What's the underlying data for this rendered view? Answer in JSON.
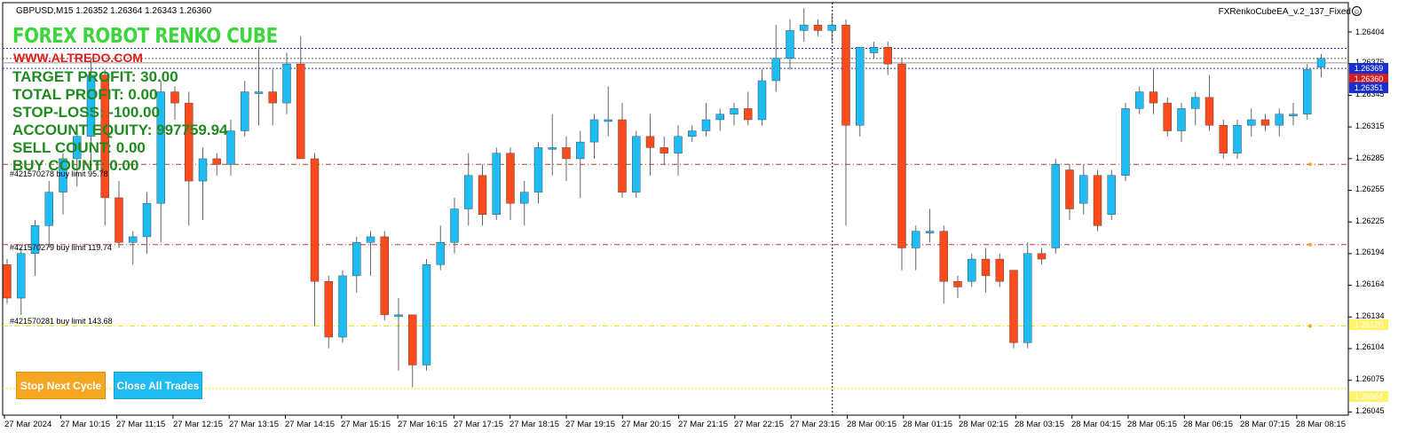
{
  "header": {
    "symbol_line": "GBPUSD,M15  1.26352 1.26364 1.26343 1.26360",
    "ea_name": "FXRenkoCubeEA_v.2_137_Fixed",
    "smiley_icon": "smiley-face-icon"
  },
  "panel": {
    "title": "FOREX ROBOT RENKO CUBE",
    "website": "WWW.ALTREDO.COM",
    "stats": [
      "TARGET PROFIT: 30.00",
      "TOTAL PROFIT: 0.00",
      "STOP-LOSS: -100.00",
      "ACCOUNT EQUITY: 997759.94",
      "SELL COUNT: 0.00",
      "BUY COUNT: 0.00"
    ]
  },
  "buttons": {
    "stop": "Stop Next Cycle",
    "close": "Close All Trades"
  },
  "orders": [
    {
      "label": "#421570278 buy limit 95.78",
      "price": 1.26265,
      "color": "#c0392b"
    },
    {
      "label": "#421570279 buy limit 119.74",
      "price": 1.26193,
      "color": "#c0392b"
    },
    {
      "label": "#421570281 buy limit 143.68",
      "price": 1.2612,
      "color": "#f2e600"
    }
  ],
  "price_axis": {
    "ticks": [
      "1.26404",
      "1.26375",
      "1.26345",
      "1.26315",
      "1.26285",
      "1.26255",
      "1.26225",
      "1.26194",
      "1.26164",
      "1.26134",
      "1.26104",
      "1.26075",
      "1.26045"
    ],
    "labels": [
      {
        "text": "1.26369",
        "bg": "#1a2fcf",
        "fg": "#ffffff"
      },
      {
        "text": "1.26360",
        "bg": "#d62020",
        "fg": "#ffffff"
      },
      {
        "text": "1.26351",
        "bg": "#1a2fcf",
        "fg": "#ffffff"
      },
      {
        "text": "1.26120",
        "bg": "#fff36a",
        "fg": "#ffffff"
      },
      {
        "text": "1.26064",
        "bg": "#fff36a",
        "fg": "#ffffff"
      }
    ]
  },
  "time_axis": [
    "27 Mar 2024",
    "27 Mar 10:15",
    "27 Mar 11:15",
    "27 Mar 12:15",
    "27 Mar 13:15",
    "27 Mar 14:15",
    "27 Mar 15:15",
    "27 Mar 16:15",
    "27 Mar 17:15",
    "27 Mar 18:15",
    "27 Mar 19:15",
    "27 Mar 20:15",
    "27 Mar 21:15",
    "27 Mar 22:15",
    "27 Mar 23:15",
    "28 Mar 00:15",
    "28 Mar 01:15",
    "28 Mar 02:15",
    "28 Mar 03:15",
    "28 Mar 04:15",
    "28 Mar 05:15",
    "28 Mar 06:15",
    "28 Mar 07:15",
    "28 Mar 08:15"
  ],
  "colors": {
    "bull": "#1ebcf2",
    "bear": "#ff4a1c",
    "wick": "#666666",
    "crosshair": "#000000"
  },
  "chart_data": {
    "type": "candlestick",
    "symbol": "GBPUSD",
    "timeframe": "M15",
    "ylim": [
      1.2604,
      1.2641
    ],
    "candles": [
      [
        1.26175,
        1.2618,
        1.2614,
        1.26145
      ],
      [
        1.26145,
        1.2619,
        1.2613,
        1.26185
      ],
      [
        1.26185,
        1.26215,
        1.26165,
        1.2621
      ],
      [
        1.2621,
        1.2625,
        1.2619,
        1.2624
      ],
      [
        1.2624,
        1.26275,
        1.2622,
        1.2627
      ],
      [
        1.2627,
        1.263,
        1.26245,
        1.2629
      ],
      [
        1.2629,
        1.2636,
        1.2626,
        1.26345
      ],
      [
        1.26345,
        1.2635,
        1.2621,
        1.26235
      ],
      [
        1.26235,
        1.2625,
        1.2619,
        1.26195
      ],
      [
        1.26195,
        1.26205,
        1.26175,
        1.262
      ],
      [
        1.262,
        1.2624,
        1.26185,
        1.2623
      ],
      [
        1.2623,
        1.2634,
        1.26195,
        1.2633
      ],
      [
        1.2633,
        1.26335,
        1.26305,
        1.2632
      ],
      [
        1.2632,
        1.2633,
        1.2621,
        1.2625
      ],
      [
        1.2625,
        1.2628,
        1.26215,
        1.2627
      ],
      [
        1.2627,
        1.26275,
        1.26255,
        1.26265
      ],
      [
        1.26265,
        1.26305,
        1.26255,
        1.26295
      ],
      [
        1.26295,
        1.2634,
        1.2629,
        1.2633
      ],
      [
        1.2633,
        1.2637,
        1.263,
        1.2633
      ],
      [
        1.2633,
        1.2635,
        1.263,
        1.2632
      ],
      [
        1.2632,
        1.26365,
        1.2631,
        1.26355
      ],
      [
        1.26355,
        1.2638,
        1.2627,
        1.2627
      ],
      [
        1.2627,
        1.26275,
        1.2612,
        1.2616
      ],
      [
        1.2616,
        1.26165,
        1.261,
        1.2611
      ],
      [
        1.2611,
        1.2617,
        1.26105,
        1.26165
      ],
      [
        1.26165,
        1.262,
        1.2615,
        1.26195
      ],
      [
        1.26195,
        1.26205,
        1.26165,
        1.262
      ],
      [
        1.262,
        1.26205,
        1.26125,
        1.2613
      ],
      [
        1.2613,
        1.26145,
        1.2608,
        1.2613
      ],
      [
        1.2613,
        1.2613,
        1.26065,
        1.26085
      ],
      [
        1.26085,
        1.2618,
        1.2608,
        1.26175
      ],
      [
        1.26175,
        1.2621,
        1.2617,
        1.26195
      ],
      [
        1.26195,
        1.26235,
        1.26185,
        1.26225
      ],
      [
        1.26225,
        1.26275,
        1.2621,
        1.26255
      ],
      [
        1.26255,
        1.26265,
        1.2621,
        1.2622
      ],
      [
        1.2622,
        1.2628,
        1.26215,
        1.26275
      ],
      [
        1.26275,
        1.2628,
        1.26215,
        1.2623
      ],
      [
        1.2623,
        1.2625,
        1.2621,
        1.2624
      ],
      [
        1.2624,
        1.26285,
        1.2623,
        1.2628
      ],
      [
        1.2628,
        1.2631,
        1.26255,
        1.2628
      ],
      [
        1.2628,
        1.2629,
        1.2625,
        1.2627
      ],
      [
        1.2627,
        1.26295,
        1.26235,
        1.26285
      ],
      [
        1.26285,
        1.2631,
        1.2627,
        1.26305
      ],
      [
        1.26305,
        1.26335,
        1.2629,
        1.26305
      ],
      [
        1.26305,
        1.2632,
        1.26235,
        1.2624
      ],
      [
        1.2624,
        1.26295,
        1.26235,
        1.2629
      ],
      [
        1.2629,
        1.2631,
        1.26255,
        1.2628
      ],
      [
        1.2628,
        1.2629,
        1.26265,
        1.26275
      ],
      [
        1.26275,
        1.263,
        1.26255,
        1.2629
      ],
      [
        1.2629,
        1.263,
        1.26285,
        1.26295
      ],
      [
        1.26295,
        1.2632,
        1.2629,
        1.26305
      ],
      [
        1.26305,
        1.26315,
        1.26295,
        1.2631
      ],
      [
        1.2631,
        1.2632,
        1.263,
        1.26315
      ],
      [
        1.26315,
        1.2633,
        1.263,
        1.26305
      ],
      [
        1.26305,
        1.2635,
        1.263,
        1.2634
      ],
      [
        1.2634,
        1.2639,
        1.2633,
        1.2636
      ],
      [
        1.2636,
        1.26395,
        1.2635,
        1.26385
      ],
      [
        1.26385,
        1.26405,
        1.26375,
        1.2639
      ],
      [
        1.2639,
        1.26395,
        1.2638,
        1.26385
      ],
      [
        1.26385,
        1.264,
        1.26375,
        1.2639
      ],
      [
        1.2639,
        1.26395,
        1.2621,
        1.263
      ],
      [
        1.263,
        1.2637,
        1.2629,
        1.2637
      ],
      [
        1.26365,
        1.26375,
        1.2636,
        1.2637
      ],
      [
        1.2637,
        1.26375,
        1.26345,
        1.26355
      ],
      [
        1.26355,
        1.2636,
        1.2617,
        1.2619
      ],
      [
        1.2619,
        1.2621,
        1.2617,
        1.26205
      ],
      [
        1.26205,
        1.26225,
        1.26195,
        1.26205
      ],
      [
        1.26205,
        1.2621,
        1.2614,
        1.2616
      ],
      [
        1.2616,
        1.26165,
        1.26145,
        1.26155
      ],
      [
        1.2616,
        1.26185,
        1.26155,
        1.2618
      ],
      [
        1.2618,
        1.2619,
        1.2615,
        1.26165
      ],
      [
        1.2618,
        1.26185,
        1.26155,
        1.2616
      ],
      [
        1.2617,
        1.2617,
        1.261,
        1.26105
      ],
      [
        1.26105,
        1.26195,
        1.261,
        1.26185
      ],
      [
        1.26185,
        1.2619,
        1.26175,
        1.2618
      ],
      [
        1.2619,
        1.2627,
        1.26185,
        1.26265
      ],
      [
        1.2626,
        1.26265,
        1.26215,
        1.26225
      ],
      [
        1.2623,
        1.26265,
        1.2622,
        1.26255
      ],
      [
        1.26255,
        1.2626,
        1.26205,
        1.2621
      ],
      [
        1.2622,
        1.2626,
        1.26215,
        1.26255
      ],
      [
        1.26255,
        1.2632,
        1.2625,
        1.26315
      ],
      [
        1.26315,
        1.26335,
        1.2631,
        1.2633
      ],
      [
        1.2633,
        1.2635,
        1.2631,
        1.2632
      ],
      [
        1.2632,
        1.26325,
        1.2629,
        1.26295
      ],
      [
        1.26295,
        1.2632,
        1.26285,
        1.26315
      ],
      [
        1.26315,
        1.2633,
        1.263,
        1.26325
      ],
      [
        1.26325,
        1.26345,
        1.26295,
        1.263
      ],
      [
        1.263,
        1.26305,
        1.2627,
        1.26275
      ],
      [
        1.26275,
        1.26305,
        1.2627,
        1.263
      ],
      [
        1.263,
        1.26315,
        1.2629,
        1.26305
      ],
      [
        1.26305,
        1.2631,
        1.26295,
        1.263
      ],
      [
        1.263,
        1.26315,
        1.2629,
        1.2631
      ],
      [
        1.2631,
        1.2632,
        1.263,
        1.2631
      ],
      [
        1.2631,
        1.26355,
        1.26305,
        1.2635
      ],
      [
        1.26352,
        1.26364,
        1.26343,
        1.2636
      ]
    ],
    "horizontal_lines": [
      1.26369,
      1.2636,
      1.26351
    ],
    "crosshair_x_index": 59
  }
}
